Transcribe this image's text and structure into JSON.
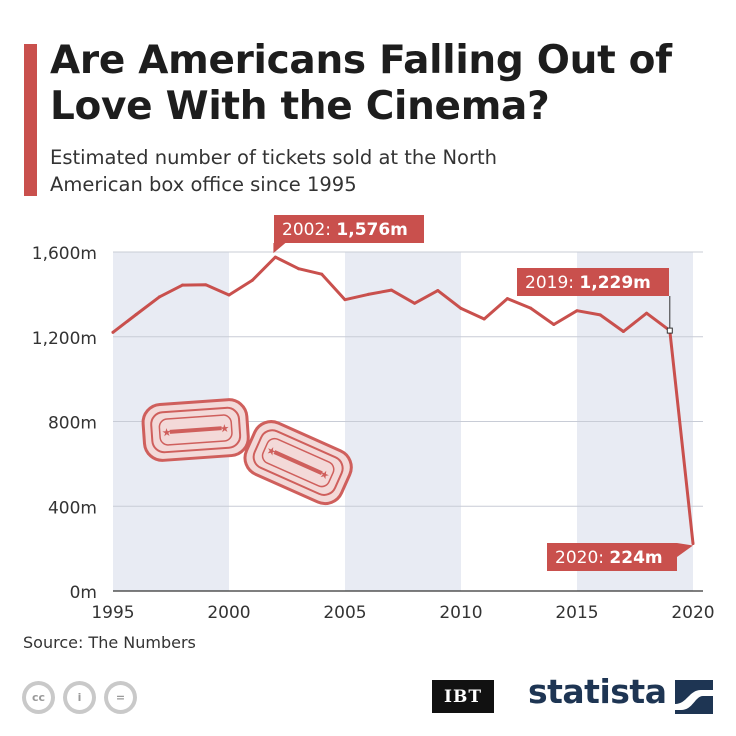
{
  "title": "Are Americans Falling Out of Love With the Cinema?",
  "subtitle": "Estimated number of tickets sold at the North American box office since 1995",
  "source": "Source: The Numbers",
  "brand": "statista",
  "publisher": "IBT",
  "license_icons": [
    "cc-icon",
    "attribution-icon",
    "no-derivatives-icon"
  ],
  "colors": {
    "accent": "#c9504d",
    "band": "#e8ebf3",
    "grid": "#c8ccd6",
    "brand": "#1e3553"
  },
  "chart_data": {
    "type": "line",
    "title": "",
    "xlabel": "",
    "ylabel": "",
    "x": [
      1995,
      1996,
      1997,
      1998,
      1999,
      2000,
      2001,
      2002,
      2003,
      2004,
      2005,
      2006,
      2007,
      2008,
      2009,
      2010,
      2011,
      2012,
      2013,
      2014,
      2015,
      2016,
      2017,
      2018,
      2019,
      2020
    ],
    "series": [
      {
        "values": [
          1221,
          1305,
          1388,
          1444,
          1445,
          1397,
          1466,
          1576,
          1521,
          1495,
          1375,
          1400,
          1420,
          1358,
          1418,
          1334,
          1284,
          1380,
          1335,
          1258,
          1323,
          1303,
          1225,
          1311,
          1229,
          224
        ]
      }
    ],
    "xlim": [
      1995,
      2020
    ],
    "ylim": [
      0,
      1600
    ],
    "yticks": [
      "0m",
      "400m",
      "800m",
      "1,200m",
      "1,600m"
    ],
    "xticks": [
      "1995",
      "2000",
      "2005",
      "2010",
      "2015",
      "2020"
    ],
    "annotations": [
      {
        "year": 2002,
        "label": "2002: ",
        "value_label": "1,576m"
      },
      {
        "year": 2019,
        "label": "2019: ",
        "value_label": "1,229m"
      },
      {
        "year": 2020,
        "label": "2020: ",
        "value_label": "224m"
      }
    ],
    "grid": true,
    "shaded_bands": [
      [
        1995,
        2000
      ],
      [
        2005,
        2010
      ],
      [
        2015,
        2020
      ]
    ]
  }
}
